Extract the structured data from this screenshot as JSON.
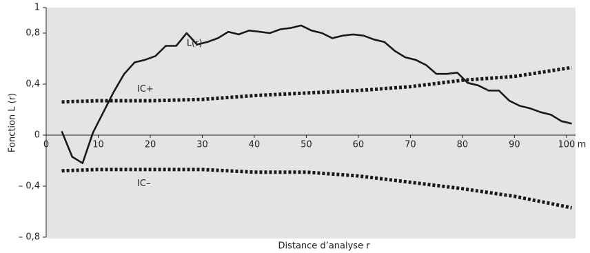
{
  "chart_data": {
    "type": "line",
    "xlabel": "Distance d’analyse r",
    "ylabel": "Fonction L (r)",
    "x_unit": "m",
    "xlim": [
      0,
      102
    ],
    "ylim": [
      -0.8,
      1
    ],
    "xticks": [
      0,
      10,
      20,
      30,
      40,
      50,
      60,
      70,
      80,
      90,
      100
    ],
    "yticks": [
      {
        "value": -0.8,
        "label": "– 0,8"
      },
      {
        "value": -0.4,
        "label": "– 0,4"
      },
      0,
      {
        "value": 0.4,
        "label": "0,4"
      },
      {
        "value": 0.8,
        "label": "0,8"
      },
      1
    ],
    "series": [
      {
        "name": "L(r)",
        "color": "#1a1a1a",
        "style": "solid",
        "x": [
          3,
          5,
          7,
          9,
          11,
          13,
          15,
          17,
          19,
          21,
          23,
          25,
          27,
          29,
          31,
          33,
          35,
          37,
          39,
          41,
          43,
          45,
          47,
          49,
          51,
          53,
          55,
          57,
          59,
          61,
          63,
          65,
          67,
          69,
          71,
          73,
          75,
          77,
          79,
          81,
          83,
          85,
          87,
          89,
          91,
          93,
          95,
          97,
          99,
          101
        ],
        "values": [
          0.03,
          -0.17,
          -0.22,
          0.02,
          0.18,
          0.34,
          0.48,
          0.57,
          0.59,
          0.62,
          0.7,
          0.7,
          0.8,
          0.71,
          0.73,
          0.76,
          0.81,
          0.79,
          0.82,
          0.81,
          0.8,
          0.83,
          0.84,
          0.86,
          0.82,
          0.8,
          0.76,
          0.78,
          0.79,
          0.78,
          0.75,
          0.73,
          0.66,
          0.61,
          0.59,
          0.55,
          0.48,
          0.48,
          0.49,
          0.41,
          0.39,
          0.35,
          0.35,
          0.27,
          0.23,
          0.21,
          0.18,
          0.16,
          0.11,
          0.09
        ]
      },
      {
        "name": "IC+",
        "color": "#1a1a1a",
        "style": "dotted",
        "x": [
          3,
          10,
          20,
          30,
          40,
          50,
          60,
          70,
          80,
          90,
          101
        ],
        "values": [
          0.26,
          0.27,
          0.27,
          0.28,
          0.31,
          0.33,
          0.35,
          0.38,
          0.43,
          0.46,
          0.53
        ]
      },
      {
        "name": "IC–",
        "color": "#1a1a1a",
        "style": "dotted",
        "x": [
          3,
          10,
          20,
          30,
          40,
          50,
          60,
          70,
          80,
          90,
          101
        ],
        "values": [
          -0.28,
          -0.27,
          -0.27,
          -0.27,
          -0.29,
          -0.29,
          -0.32,
          -0.37,
          -0.42,
          -0.48,
          -0.57
        ]
      }
    ]
  }
}
